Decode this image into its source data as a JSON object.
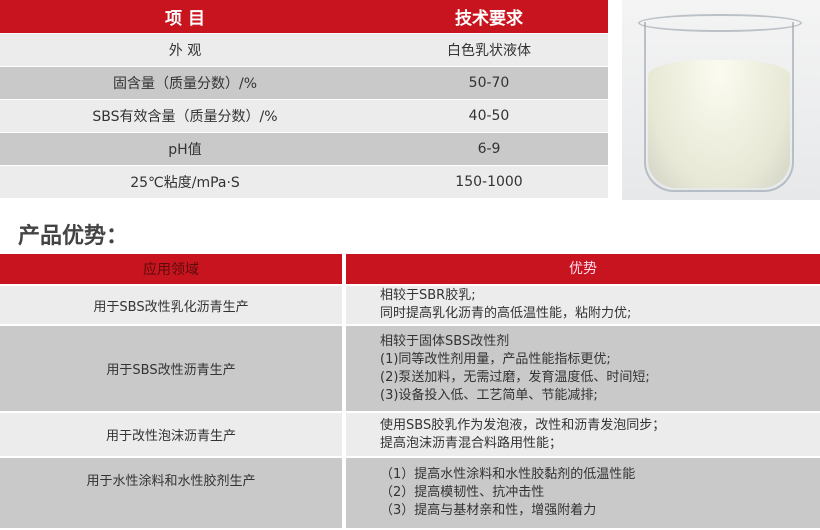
{
  "spec_table": {
    "headers": [
      "项  目",
      "技术要求"
    ],
    "rows": [
      {
        "item": "外  观",
        "value": "白色乳状液体"
      },
      {
        "item": "固含量（质量分数）/%",
        "value": "50-70"
      },
      {
        "item": "SBS有效含量（质量分数）/%",
        "value": "40-50"
      },
      {
        "item": "pH值",
        "value": "6-9"
      },
      {
        "item": "25℃粘度/mPa·S",
        "value": "150-1000"
      }
    ]
  },
  "advantages": {
    "title": "产品优势：",
    "headers": [
      "应用领域",
      "优势"
    ],
    "rows": [
      {
        "field": "用于SBS改性乳化沥青生产",
        "lines": [
          "相较于SBR胶乳;",
          "同时提高乳化沥青的高低温性能，粘附力优;"
        ]
      },
      {
        "field": "用于SBS改性沥青生产",
        "lines": [
          "相较于固体SBS改性剂",
          "(1)同等改性剂用量，产品性能指标更优;",
          "(2)泵送加料，无需过磨，发育温度低、时间短;",
          "(3)设备投入低、工艺简单、节能减排;"
        ]
      },
      {
        "field": "用于改性泡沫沥青生产",
        "lines": [
          "使用SBS胶乳作为发泡液，改性和沥青发泡同步；",
          "提高泡沫沥青混合料路用性能；"
        ]
      },
      {
        "field": "用于水性涂料和水性胶剂生产",
        "lines": [
          "（1）提高水性涂料和水性胶黏剂的低温性能",
          "（2）提高模韧性、抗冲击性",
          "（3）提高与基材亲和性，增强附着力"
        ]
      }
    ]
  },
  "colors": {
    "header_red": "#c8141e",
    "row_light": "#ececec",
    "row_dark": "#c9c9c9"
  }
}
